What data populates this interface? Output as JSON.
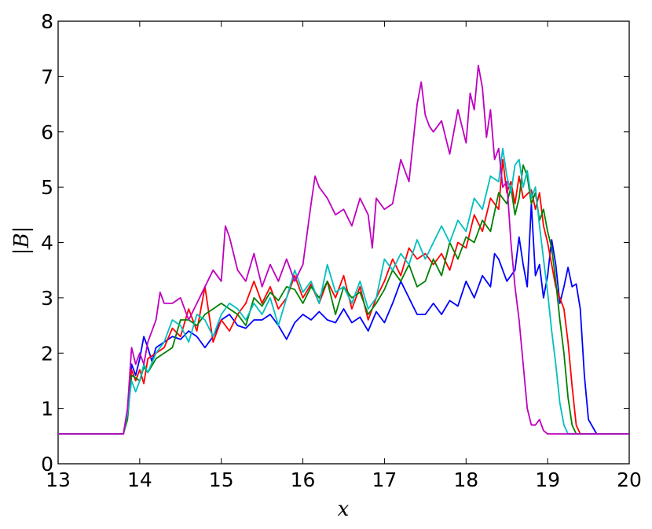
{
  "chart_data": {
    "type": "line",
    "xlabel": "x",
    "ylabel": "|B|",
    "xlim": [
      13,
      20
    ],
    "ylim": [
      0,
      8
    ],
    "xticks": [
      "13",
      "14",
      "15",
      "16",
      "17",
      "18",
      "19",
      "20"
    ],
    "yticks": [
      "0",
      "1",
      "2",
      "3",
      "4",
      "5",
      "6",
      "7",
      "8"
    ],
    "grid": false,
    "series": [
      {
        "color": "#0000ff",
        "x": [
          13.0,
          13.8,
          13.85,
          13.9,
          13.95,
          14.0,
          14.05,
          14.1,
          14.15,
          14.2,
          14.3,
          14.4,
          14.5,
          14.6,
          14.7,
          14.8,
          14.9,
          15.0,
          15.1,
          15.2,
          15.3,
          15.4,
          15.5,
          15.6,
          15.7,
          15.8,
          15.9,
          16.0,
          16.1,
          16.2,
          16.3,
          16.4,
          16.5,
          16.6,
          16.7,
          16.8,
          16.9,
          17.0,
          17.1,
          17.2,
          17.3,
          17.4,
          17.5,
          17.6,
          17.7,
          17.8,
          17.9,
          18.0,
          18.1,
          18.2,
          18.3,
          18.35,
          18.4,
          18.5,
          18.6,
          18.65,
          18.7,
          18.75,
          18.8,
          18.85,
          18.9,
          18.95,
          19.0,
          19.05,
          19.1,
          19.15,
          19.2,
          19.25,
          19.3,
          19.35,
          19.4,
          19.45,
          19.5,
          19.6,
          20.0
        ],
        "y": [
          0.54,
          0.54,
          0.9,
          1.8,
          1.6,
          1.9,
          2.3,
          2.1,
          1.85,
          2.1,
          2.2,
          2.3,
          2.25,
          2.4,
          2.3,
          2.1,
          2.3,
          2.6,
          2.7,
          2.5,
          2.45,
          2.6,
          2.6,
          2.7,
          2.5,
          2.25,
          2.55,
          2.7,
          2.6,
          2.75,
          2.6,
          2.55,
          2.8,
          2.55,
          2.65,
          2.4,
          2.75,
          2.55,
          2.9,
          3.3,
          3.0,
          2.7,
          2.7,
          2.9,
          2.7,
          2.95,
          2.85,
          3.3,
          3.0,
          3.4,
          3.2,
          3.8,
          3.7,
          3.3,
          3.5,
          4.1,
          3.6,
          3.2,
          4.7,
          3.4,
          3.6,
          3.0,
          3.4,
          4.05,
          3.6,
          2.9,
          3.2,
          3.55,
          3.2,
          3.25,
          2.8,
          1.6,
          0.8,
          0.54,
          0.54
        ]
      },
      {
        "color": "#ff0000",
        "x": [
          13.0,
          13.8,
          13.85,
          13.9,
          13.95,
          14.0,
          14.05,
          14.1,
          14.2,
          14.3,
          14.4,
          14.5,
          14.6,
          14.7,
          14.8,
          14.9,
          15.0,
          15.1,
          15.2,
          15.3,
          15.4,
          15.5,
          15.6,
          15.7,
          15.8,
          15.9,
          16.0,
          16.1,
          16.2,
          16.3,
          16.4,
          16.5,
          16.6,
          16.7,
          16.8,
          16.9,
          17.0,
          17.1,
          17.2,
          17.3,
          17.4,
          17.5,
          17.6,
          17.7,
          17.8,
          17.9,
          18.0,
          18.1,
          18.2,
          18.3,
          18.4,
          18.45,
          18.5,
          18.55,
          18.6,
          18.65,
          18.7,
          18.8,
          18.85,
          18.9,
          18.95,
          19.0,
          19.05,
          19.1,
          19.15,
          19.2,
          19.25,
          19.3,
          19.35,
          19.4,
          20.0
        ],
        "y": [
          0.54,
          0.54,
          0.9,
          1.7,
          1.5,
          1.7,
          1.45,
          1.9,
          2.0,
          2.1,
          2.45,
          2.3,
          2.8,
          2.4,
          3.2,
          2.2,
          2.6,
          2.4,
          2.7,
          2.9,
          3.3,
          2.9,
          3.2,
          2.8,
          3.0,
          3.4,
          3.0,
          3.25,
          2.9,
          3.3,
          3.0,
          3.4,
          2.8,
          3.2,
          2.6,
          3.0,
          3.3,
          3.7,
          3.4,
          3.9,
          3.7,
          3.8,
          3.6,
          3.8,
          3.5,
          4.0,
          3.9,
          4.5,
          4.2,
          4.8,
          4.6,
          5.5,
          4.9,
          5.1,
          4.7,
          5.2,
          4.8,
          4.95,
          4.6,
          4.9,
          4.3,
          4.0,
          3.6,
          3.2,
          3.0,
          2.8,
          2.2,
          1.4,
          0.7,
          0.54,
          0.54
        ]
      },
      {
        "color": "#008000",
        "x": [
          13.0,
          13.8,
          13.85,
          13.9,
          13.95,
          14.0,
          14.05,
          14.1,
          14.2,
          14.3,
          14.4,
          14.5,
          14.6,
          14.7,
          14.8,
          14.9,
          15.0,
          15.1,
          15.2,
          15.3,
          15.4,
          15.5,
          15.6,
          15.7,
          15.8,
          15.9,
          16.0,
          16.1,
          16.2,
          16.3,
          16.4,
          16.5,
          16.6,
          16.7,
          16.8,
          16.9,
          17.0,
          17.1,
          17.2,
          17.3,
          17.4,
          17.5,
          17.6,
          17.7,
          17.8,
          17.9,
          18.0,
          18.1,
          18.2,
          18.3,
          18.4,
          18.5,
          18.55,
          18.6,
          18.65,
          18.7,
          18.75,
          18.8,
          18.85,
          18.9,
          18.95,
          19.0,
          19.05,
          19.1,
          19.15,
          19.2,
          19.25,
          19.3,
          19.35,
          20.0
        ],
        "y": [
          0.54,
          0.54,
          0.8,
          1.6,
          1.55,
          1.5,
          1.75,
          1.65,
          1.9,
          2.0,
          2.1,
          2.6,
          2.6,
          2.5,
          2.7,
          2.8,
          2.9,
          2.8,
          2.7,
          2.5,
          3.0,
          2.85,
          3.1,
          2.95,
          3.2,
          3.15,
          2.9,
          3.2,
          3.0,
          3.3,
          2.7,
          3.2,
          3.0,
          3.1,
          2.7,
          2.9,
          3.15,
          3.5,
          3.3,
          3.6,
          3.2,
          3.3,
          3.7,
          3.4,
          4.0,
          3.7,
          4.1,
          4.0,
          4.4,
          4.2,
          4.9,
          4.7,
          5.0,
          4.5,
          4.8,
          5.4,
          5.2,
          4.7,
          4.9,
          4.4,
          4.6,
          4.2,
          3.9,
          3.3,
          2.6,
          2.0,
          1.2,
          0.7,
          0.54,
          0.54
        ]
      },
      {
        "color": "#00bfbf",
        "x": [
          13.0,
          13.8,
          13.85,
          13.9,
          13.95,
          14.0,
          14.05,
          14.1,
          14.2,
          14.3,
          14.4,
          14.5,
          14.6,
          14.7,
          14.8,
          14.9,
          15.0,
          15.1,
          15.2,
          15.3,
          15.4,
          15.5,
          15.6,
          15.7,
          15.8,
          15.9,
          16.0,
          16.1,
          16.2,
          16.3,
          16.4,
          16.5,
          16.6,
          16.7,
          16.8,
          16.9,
          17.0,
          17.1,
          17.2,
          17.3,
          17.4,
          17.5,
          17.6,
          17.7,
          17.8,
          17.9,
          18.0,
          18.1,
          18.2,
          18.3,
          18.4,
          18.45,
          18.5,
          18.55,
          18.6,
          18.65,
          18.7,
          18.75,
          18.8,
          18.85,
          18.9,
          18.95,
          19.0,
          19.05,
          19.1,
          19.15,
          19.2,
          19.25,
          19.3,
          20.0
        ],
        "y": [
          0.54,
          0.54,
          0.9,
          1.5,
          1.3,
          1.5,
          1.8,
          1.65,
          2.0,
          2.2,
          2.6,
          2.5,
          2.2,
          2.7,
          2.6,
          2.3,
          2.7,
          2.9,
          2.8,
          2.6,
          2.9,
          2.7,
          3.0,
          2.5,
          3.0,
          3.5,
          3.1,
          3.3,
          2.9,
          3.6,
          3.1,
          3.2,
          2.9,
          3.3,
          2.8,
          3.0,
          3.7,
          3.5,
          3.8,
          3.6,
          4.05,
          3.7,
          4.0,
          4.3,
          4.0,
          4.4,
          4.2,
          4.8,
          4.6,
          5.2,
          5.1,
          5.7,
          5.2,
          4.9,
          5.4,
          5.5,
          5.0,
          5.3,
          4.8,
          5.0,
          4.3,
          3.7,
          3.1,
          2.4,
          1.8,
          1.1,
          0.7,
          0.54,
          0.54,
          0.54
        ]
      },
      {
        "color": "#bf00bf",
        "x": [
          13.0,
          13.8,
          13.85,
          13.9,
          13.95,
          14.0,
          14.05,
          14.1,
          14.2,
          14.25,
          14.3,
          14.4,
          14.5,
          14.6,
          14.7,
          14.8,
          14.9,
          15.0,
          15.05,
          15.1,
          15.2,
          15.3,
          15.4,
          15.5,
          15.6,
          15.7,
          15.8,
          15.9,
          16.0,
          16.1,
          16.15,
          16.2,
          16.3,
          16.4,
          16.5,
          16.6,
          16.7,
          16.8,
          16.85,
          16.9,
          17.0,
          17.1,
          17.2,
          17.3,
          17.4,
          17.45,
          17.5,
          17.55,
          17.6,
          17.7,
          17.8,
          17.9,
          18.0,
          18.05,
          18.1,
          18.15,
          18.2,
          18.25,
          18.3,
          18.35,
          18.4,
          18.45,
          18.5,
          18.55,
          18.6,
          18.65,
          18.7,
          18.75,
          18.8,
          18.85,
          18.9,
          18.95,
          19.0,
          20.0
        ],
        "y": [
          0.54,
          0.54,
          1.0,
          2.1,
          1.8,
          2.0,
          1.8,
          2.2,
          2.6,
          3.1,
          2.9,
          2.9,
          3.0,
          2.6,
          2.9,
          3.2,
          3.5,
          3.3,
          4.3,
          4.1,
          3.5,
          3.3,
          3.8,
          3.2,
          3.6,
          3.3,
          3.7,
          3.3,
          3.6,
          4.7,
          5.2,
          5.0,
          4.8,
          4.5,
          4.6,
          4.3,
          4.8,
          4.5,
          3.9,
          4.8,
          4.6,
          4.7,
          5.5,
          5.1,
          6.5,
          6.9,
          6.3,
          6.1,
          6.0,
          6.2,
          5.6,
          6.4,
          5.8,
          6.7,
          6.4,
          7.2,
          6.8,
          5.9,
          6.4,
          5.5,
          5.7,
          5.0,
          5.1,
          4.0,
          3.2,
          2.6,
          1.8,
          1.0,
          0.7,
          0.7,
          0.8,
          0.6,
          0.54,
          0.54
        ]
      }
    ]
  }
}
